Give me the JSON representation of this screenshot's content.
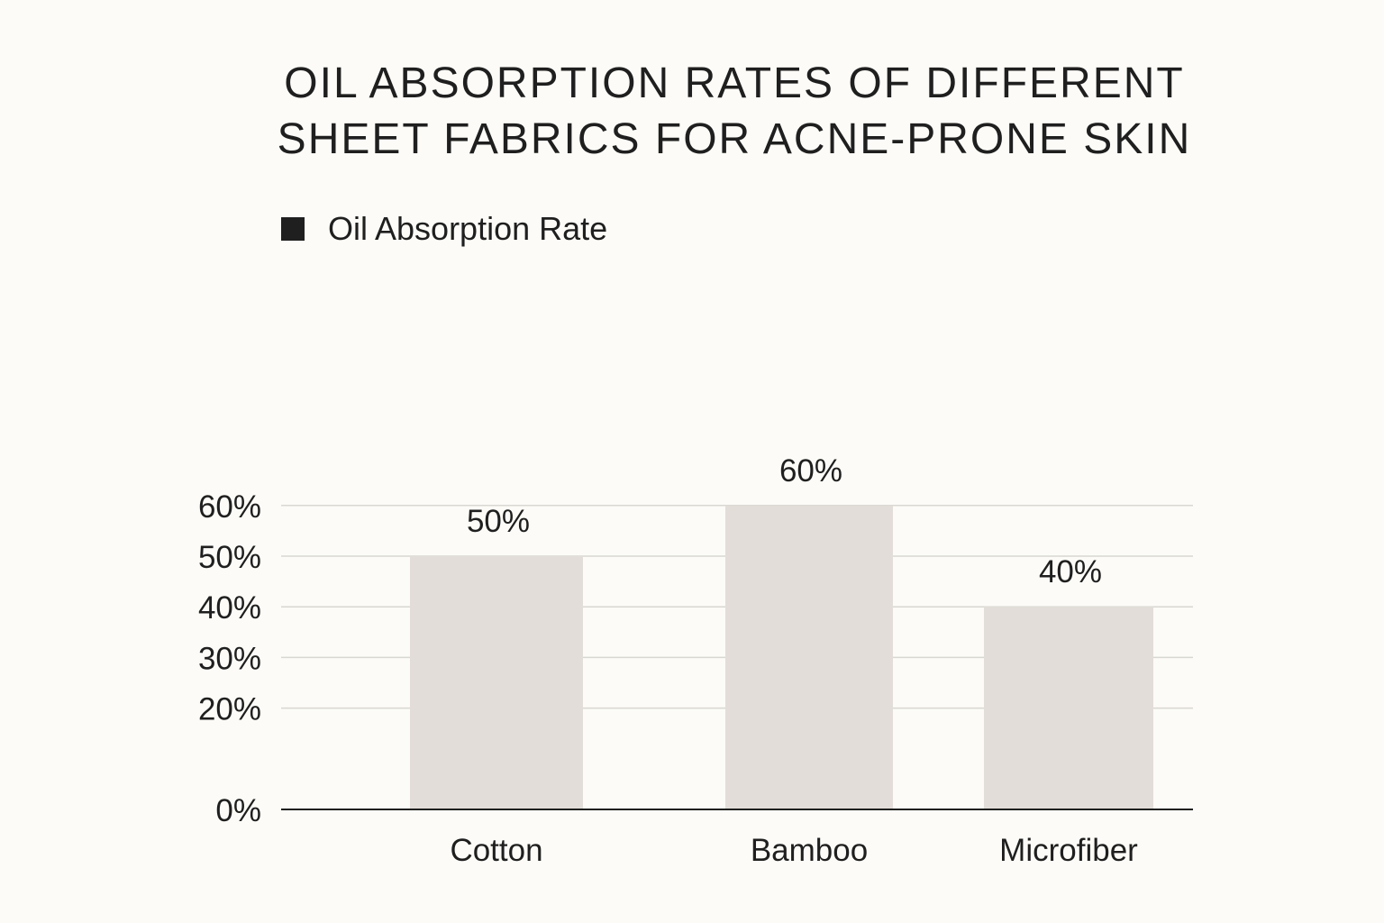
{
  "chart_data": {
    "type": "bar",
    "title_lines": [
      "OIL ABSORPTION RATES OF DIFFERENT",
      "SHEET FABRICS FOR ACNE-PRONE SKIN"
    ],
    "categories": [
      "Cotton",
      "Bamboo",
      "Microfiber"
    ],
    "series": [
      {
        "name": "Oil Absorption Rate",
        "values": [
          50,
          60,
          40
        ],
        "data_labels": [
          "50%",
          "60%",
          "40%"
        ]
      }
    ],
    "y_ticks": [
      {
        "value": 0,
        "label": "0%"
      },
      {
        "value": 20,
        "label": "20%"
      },
      {
        "value": 30,
        "label": "30%"
      },
      {
        "value": 40,
        "label": "40%"
      },
      {
        "value": 50,
        "label": "50%"
      },
      {
        "value": 60,
        "label": "60%"
      }
    ],
    "xlabel": "",
    "ylabel": "",
    "legend_position": "top-left",
    "grid": true,
    "colors": {
      "background": "#fcfbf7",
      "bar": "#e2ddd8",
      "gridline": "#d9d7d2",
      "axis": "#1f1f1f",
      "text": "#1f1f1f",
      "legend_swatch": "#1f1f1f"
    }
  }
}
